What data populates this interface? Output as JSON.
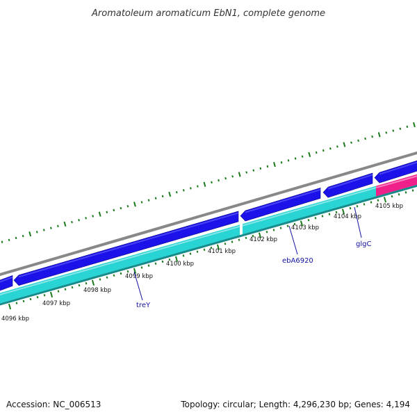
{
  "title": "Aromatoleum aromaticum EbN1, complete genome",
  "footer": {
    "accession": "Accession: NC_006513",
    "summary": "Topology: circular; Length: 4,296,230 bp; Genes: 4,194"
  },
  "colors": {
    "backbone": "#888888",
    "forward_cds": "#1a12e8",
    "reverse_cds": "#28d4d4",
    "reverse_cds_dark": "#178a8a",
    "rna_feature": "#f0208a",
    "tick": "#1a7a1a",
    "gene_label": "#1010a0"
  },
  "kbp_labels": [
    "4096 kbp",
    "4097 kbp",
    "4098 kbp",
    "4099 kbp",
    "4100 kbp",
    "4101 kbp",
    "4102 kbp",
    "4103 kbp",
    "4104 kbp",
    "4105 kbp"
  ],
  "gene_labels": [
    "treY",
    "ebA6920",
    "glgC"
  ],
  "features": [
    {
      "track": "forward",
      "color": "forward_cds",
      "direction": "left"
    },
    {
      "track": "forward",
      "color": "forward_cds",
      "direction": "left"
    },
    {
      "track": "forward",
      "color": "forward_cds",
      "direction": "left"
    },
    {
      "track": "forward",
      "color": "forward_cds",
      "direction": "left"
    },
    {
      "track": "forward",
      "color": "forward_cds",
      "direction": "left"
    },
    {
      "track": "reverse",
      "color": "reverse_cds"
    },
    {
      "track": "reverse",
      "color": "reverse_cds"
    },
    {
      "track": "reverse",
      "color": "rna_feature"
    }
  ]
}
